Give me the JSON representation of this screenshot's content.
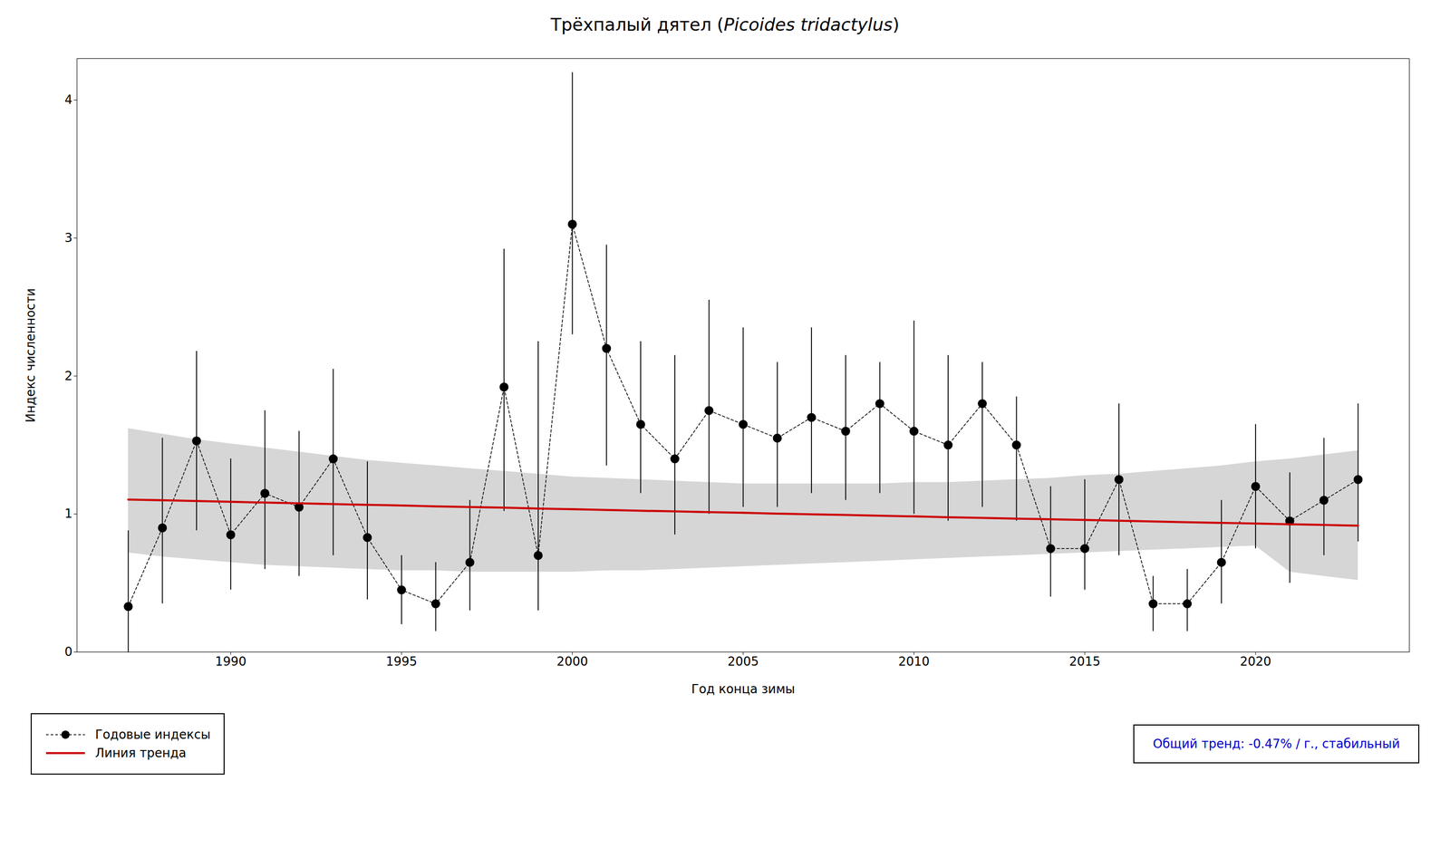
{
  "chart_data": {
    "type": "line",
    "title": "Трёхпалый дятел (Picoides tridactylus)",
    "xlabel": "Год конца зимы",
    "ylabel": "Индекс численности",
    "x": [
      1987,
      1988,
      1989,
      1990,
      1991,
      1992,
      1993,
      1994,
      1995,
      1996,
      1997,
      1998,
      1999,
      2000,
      2001,
      2002,
      2003,
      2004,
      2005,
      2006,
      2007,
      2008,
      2009,
      2010,
      2011,
      2012,
      2013,
      2014,
      2015,
      2016,
      2017,
      2018,
      2019,
      2020,
      2021,
      2022,
      2023
    ],
    "series": [
      {
        "name": "Годовые индексы",
        "color": "#000000",
        "line_style": "dashed",
        "marker": "circle",
        "values": [
          0.33,
          0.9,
          1.53,
          0.85,
          1.15,
          1.05,
          1.4,
          0.83,
          0.45,
          0.35,
          0.65,
          1.92,
          0.7,
          3.1,
          2.2,
          1.65,
          1.4,
          1.75,
          1.65,
          1.55,
          1.7,
          1.6,
          1.8,
          1.6,
          1.5,
          1.8,
          1.5,
          0.75,
          0.75,
          1.25,
          0.35,
          0.35,
          0.65,
          1.2,
          0.95,
          1.1,
          1.25
        ],
        "yerr_low": [
          0.33,
          0.55,
          0.65,
          0.4,
          0.55,
          0.5,
          0.7,
          0.45,
          0.25,
          0.2,
          0.35,
          0.9,
          0.4,
          0.8,
          0.85,
          0.5,
          0.55,
          0.75,
          0.6,
          0.5,
          0.55,
          0.5,
          0.65,
          0.6,
          0.55,
          0.75,
          0.55,
          0.35,
          0.3,
          0.55,
          0.2,
          0.2,
          0.3,
          0.45,
          0.45,
          0.4,
          0.45
        ],
        "yerr_high": [
          0.55,
          0.65,
          0.65,
          0.55,
          0.6,
          0.55,
          0.65,
          0.55,
          0.25,
          0.3,
          0.45,
          1.0,
          1.55,
          1.1,
          0.75,
          0.6,
          0.75,
          0.8,
          0.7,
          0.55,
          0.65,
          0.55,
          0.3,
          0.8,
          0.65,
          0.3,
          0.35,
          0.45,
          0.5,
          0.55,
          0.2,
          0.25,
          0.45,
          0.45,
          0.35,
          0.45,
          0.55
        ]
      },
      {
        "name": "Линия тренда",
        "color": "#cc0000",
        "line_style": "solid",
        "values": [
          1.105,
          1.1,
          1.094,
          1.089,
          1.083,
          1.078,
          1.072,
          1.067,
          1.062,
          1.056,
          1.051,
          1.046,
          1.04,
          1.035,
          1.03,
          1.024,
          1.019,
          1.014,
          1.009,
          1.003,
          0.998,
          0.993,
          0.988,
          0.983,
          0.977,
          0.972,
          0.967,
          0.962,
          0.957,
          0.952,
          0.946,
          0.941,
          0.936,
          0.931,
          0.926,
          0.921,
          0.916
        ],
        "ci_upper": [
          1.62,
          1.58,
          1.54,
          1.51,
          1.48,
          1.45,
          1.42,
          1.39,
          1.37,
          1.35,
          1.33,
          1.31,
          1.29,
          1.27,
          1.26,
          1.25,
          1.24,
          1.23,
          1.22,
          1.22,
          1.22,
          1.22,
          1.22,
          1.23,
          1.23,
          1.24,
          1.25,
          1.26,
          1.28,
          1.29,
          1.31,
          1.33,
          1.35,
          1.38,
          1.4,
          1.43,
          1.46
        ],
        "ci_lower": [
          0.72,
          0.69,
          0.67,
          0.65,
          0.63,
          0.62,
          0.61,
          0.6,
          0.59,
          0.59,
          0.58,
          0.58,
          0.58,
          0.58,
          0.59,
          0.59,
          0.6,
          0.61,
          0.62,
          0.63,
          0.64,
          0.65,
          0.66,
          0.67,
          0.68,
          0.69,
          0.7,
          0.71,
          0.72,
          0.73,
          0.74,
          0.75,
          0.76,
          0.77,
          0.58,
          0.55,
          0.52
        ]
      }
    ],
    "annotations": [
      {
        "text": "Общий тренд: -0.47% / г., стабильный",
        "color": "#0000cc"
      }
    ],
    "xlim": [
      1985.5,
      2024.5
    ],
    "ylim": [
      0,
      4.3
    ],
    "xticks": [
      1990,
      1995,
      2000,
      2005,
      2010,
      2015,
      2020
    ],
    "yticks": [
      0,
      1,
      2,
      3,
      4
    ],
    "grid": false,
    "legend": "bottom"
  }
}
